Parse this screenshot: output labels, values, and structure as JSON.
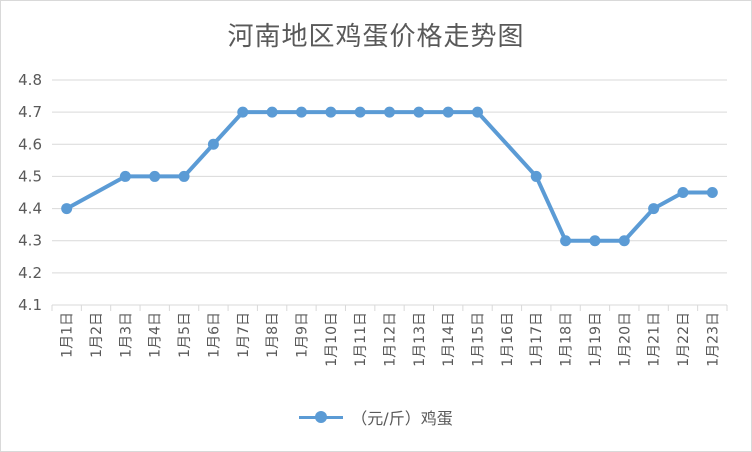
{
  "chart_data": {
    "type": "line",
    "title": "河南地区鸡蛋价格走势图",
    "categories": [
      "1月1日",
      "1月2日",
      "1月3日",
      "1月4日",
      "1月5日",
      "1月6日",
      "1月7日",
      "1月8日",
      "1月9日",
      "1月10日",
      "1月11日",
      "1月12日",
      "1月13日",
      "1月14日",
      "1月15日",
      "1月16日",
      "1月17日",
      "1月18日",
      "1月19日",
      "1月20日",
      "1月21日",
      "1月22日",
      "1月23日"
    ],
    "series": [
      {
        "name": "（元/斤）鸡蛋",
        "color": "#5b9bd5",
        "values": [
          4.4,
          null,
          4.5,
          4.5,
          4.5,
          4.6,
          4.7,
          4.7,
          4.7,
          4.7,
          4.7,
          4.7,
          4.7,
          4.7,
          4.7,
          null,
          4.5,
          4.3,
          4.3,
          4.3,
          4.4,
          4.45,
          4.45
        ]
      }
    ],
    "ylim": [
      4.1,
      4.8
    ],
    "yticks": [
      "4.1",
      "4.2",
      "4.3",
      "4.4",
      "4.5",
      "4.6",
      "4.7",
      "4.8"
    ],
    "grid": true,
    "legend": "bottom"
  }
}
